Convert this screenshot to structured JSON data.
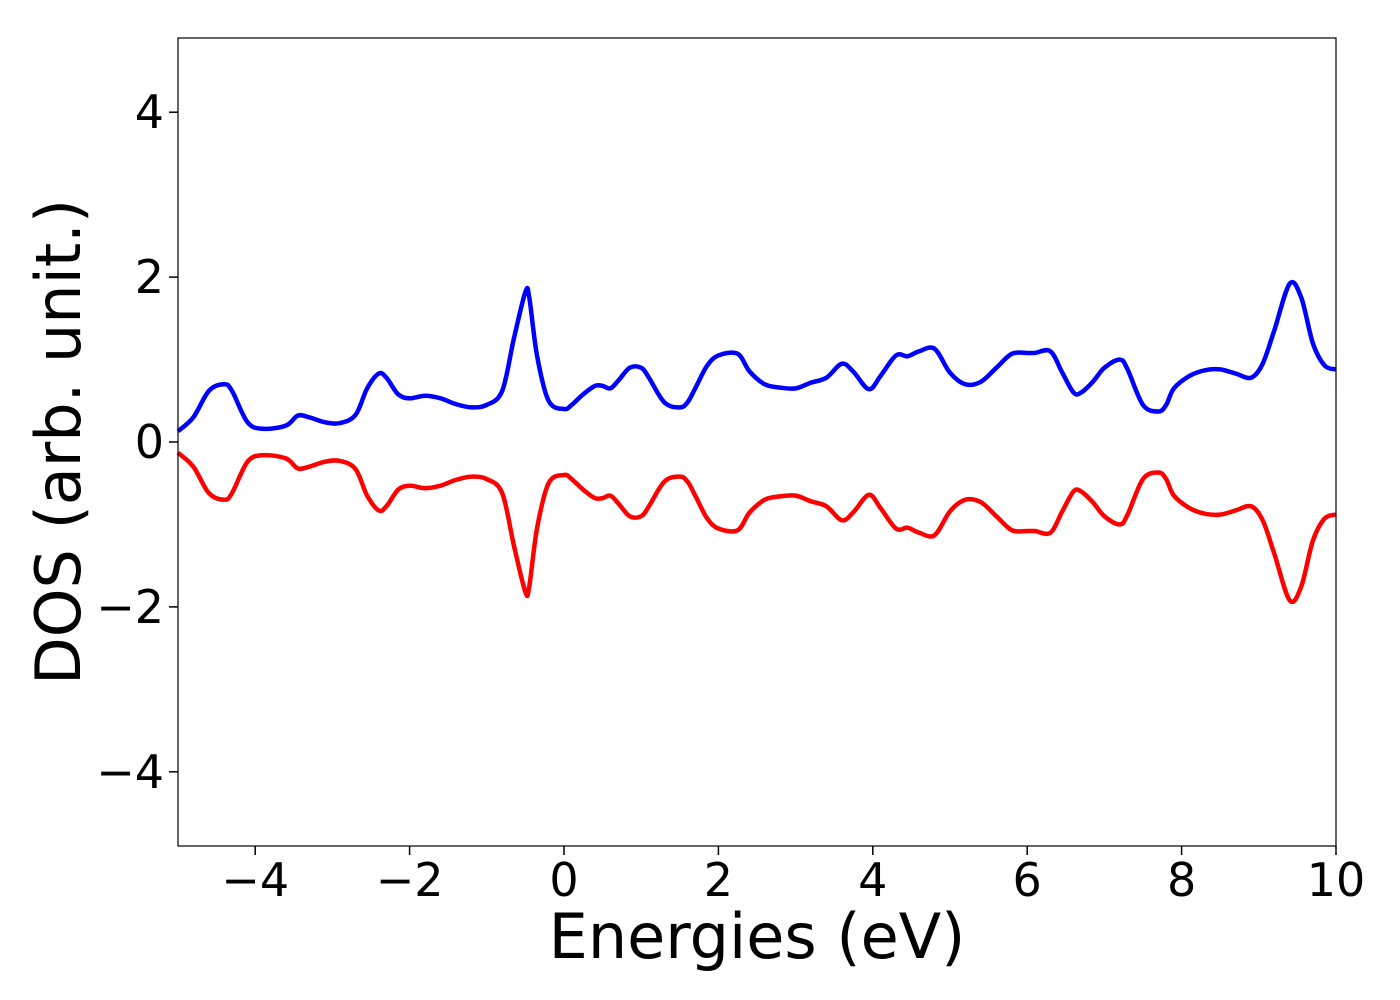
{
  "chart_data": {
    "type": "line",
    "title": "",
    "xlabel": "Energies (eV)",
    "ylabel": "DOS (arb. unit.)",
    "xlim": [
      -5,
      10
    ],
    "ylim": [
      -4.9,
      4.9
    ],
    "xticks": [
      -4,
      -2,
      0,
      2,
      4,
      6,
      8,
      10
    ],
    "xtick_labels": [
      "−4",
      "−2",
      "0",
      "2",
      "4",
      "6",
      "8",
      "10"
    ],
    "yticks": [
      -4,
      -2,
      0,
      2,
      4
    ],
    "ytick_labels": [
      "−4",
      "−2",
      "0",
      "2",
      "4"
    ],
    "grid": false,
    "legend": "none",
    "series": [
      {
        "color": "#0000ff",
        "x": [
          -5.0,
          -4.8,
          -4.6,
          -4.4,
          -4.3,
          -4.1,
          -3.9,
          -3.6,
          -3.45,
          -3.3,
          -3.1,
          -2.9,
          -2.7,
          -2.55,
          -2.4,
          -2.3,
          -2.15,
          -2.0,
          -1.8,
          -1.6,
          -1.4,
          -1.2,
          -1.0,
          -0.8,
          -0.65,
          -0.5,
          -0.45,
          -0.35,
          -0.2,
          0.0,
          0.1,
          0.25,
          0.4,
          0.5,
          0.6,
          0.7,
          0.85,
          1.0,
          1.1,
          1.3,
          1.5,
          1.6,
          1.7,
          1.85,
          2.0,
          2.25,
          2.4,
          2.6,
          2.8,
          3.0,
          3.2,
          3.4,
          3.6,
          3.75,
          3.95,
          4.1,
          4.3,
          4.45,
          4.6,
          4.8,
          5.0,
          5.2,
          5.4,
          5.6,
          5.8,
          6.0,
          6.1,
          6.3,
          6.45,
          6.6,
          6.7,
          6.85,
          7.0,
          7.2,
          7.3,
          7.5,
          7.7,
          7.8,
          7.9,
          8.1,
          8.3,
          8.5,
          8.7,
          8.9,
          9.05,
          9.2,
          9.4,
          9.55,
          9.7,
          9.85,
          10.0
        ],
        "y": [
          0.13,
          0.3,
          0.62,
          0.7,
          0.62,
          0.24,
          0.16,
          0.2,
          0.32,
          0.3,
          0.24,
          0.23,
          0.33,
          0.65,
          0.83,
          0.78,
          0.58,
          0.53,
          0.56,
          0.53,
          0.46,
          0.42,
          0.45,
          0.62,
          1.25,
          1.82,
          1.75,
          1.05,
          0.5,
          0.4,
          0.45,
          0.58,
          0.68,
          0.68,
          0.65,
          0.74,
          0.9,
          0.9,
          0.78,
          0.48,
          0.42,
          0.48,
          0.65,
          0.92,
          1.05,
          1.07,
          0.86,
          0.7,
          0.66,
          0.65,
          0.72,
          0.78,
          0.95,
          0.85,
          0.64,
          0.8,
          1.05,
          1.04,
          1.1,
          1.13,
          0.84,
          0.7,
          0.73,
          0.9,
          1.07,
          1.08,
          1.08,
          1.1,
          0.85,
          0.6,
          0.6,
          0.73,
          0.9,
          1.0,
          0.88,
          0.45,
          0.37,
          0.45,
          0.65,
          0.8,
          0.87,
          0.88,
          0.83,
          0.78,
          0.95,
          1.35,
          1.92,
          1.75,
          1.2,
          0.93,
          0.88
        ]
      },
      {
        "color": "#ff0000",
        "x": [
          -5.0,
          -4.8,
          -4.6,
          -4.4,
          -4.3,
          -4.1,
          -3.9,
          -3.6,
          -3.45,
          -3.3,
          -3.1,
          -2.9,
          -2.7,
          -2.55,
          -2.4,
          -2.3,
          -2.15,
          -2.0,
          -1.8,
          -1.6,
          -1.4,
          -1.2,
          -1.0,
          -0.8,
          -0.65,
          -0.5,
          -0.45,
          -0.35,
          -0.2,
          0.0,
          0.1,
          0.25,
          0.4,
          0.5,
          0.6,
          0.7,
          0.85,
          1.0,
          1.1,
          1.3,
          1.5,
          1.6,
          1.7,
          1.85,
          2.0,
          2.25,
          2.4,
          2.6,
          2.8,
          3.0,
          3.2,
          3.4,
          3.6,
          3.75,
          3.95,
          4.1,
          4.3,
          4.45,
          4.6,
          4.8,
          5.0,
          5.2,
          5.4,
          5.6,
          5.8,
          6.0,
          6.1,
          6.3,
          6.45,
          6.6,
          6.7,
          6.85,
          7.0,
          7.2,
          7.3,
          7.5,
          7.7,
          7.8,
          7.9,
          8.1,
          8.3,
          8.5,
          8.7,
          8.9,
          9.05,
          9.2,
          9.4,
          9.55,
          9.7,
          9.85,
          10.0
        ],
        "y": [
          -0.13,
          -0.3,
          -0.62,
          -0.7,
          -0.62,
          -0.24,
          -0.16,
          -0.2,
          -0.32,
          -0.3,
          -0.24,
          -0.23,
          -0.33,
          -0.65,
          -0.83,
          -0.78,
          -0.58,
          -0.53,
          -0.56,
          -0.53,
          -0.46,
          -0.42,
          -0.45,
          -0.62,
          -1.25,
          -1.82,
          -1.75,
          -1.05,
          -0.5,
          -0.4,
          -0.45,
          -0.58,
          -0.68,
          -0.68,
          -0.65,
          -0.74,
          -0.9,
          -0.9,
          -0.78,
          -0.48,
          -0.42,
          -0.48,
          -0.65,
          -0.92,
          -1.05,
          -1.07,
          -0.86,
          -0.7,
          -0.66,
          -0.65,
          -0.72,
          -0.78,
          -0.95,
          -0.85,
          -0.64,
          -0.8,
          -1.05,
          -1.04,
          -1.1,
          -1.13,
          -0.84,
          -0.7,
          -0.73,
          -0.9,
          -1.07,
          -1.08,
          -1.08,
          -1.1,
          -0.85,
          -0.6,
          -0.6,
          -0.73,
          -0.9,
          -1.0,
          -0.88,
          -0.45,
          -0.37,
          -0.45,
          -0.65,
          -0.8,
          -0.87,
          -0.88,
          -0.83,
          -0.78,
          -0.95,
          -1.35,
          -1.92,
          -1.75,
          -1.2,
          -0.93,
          -0.88
        ]
      }
    ]
  }
}
